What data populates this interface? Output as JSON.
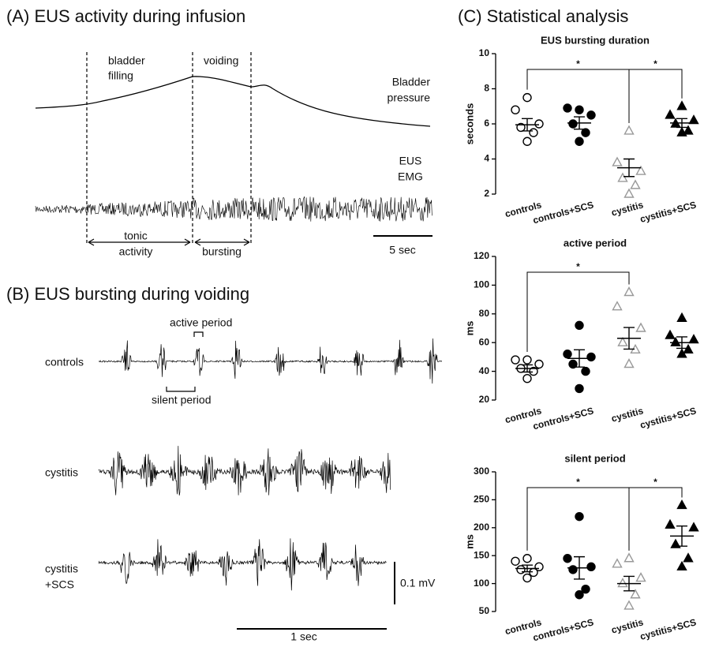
{
  "panel_a": {
    "title": "(A) EUS activity during infusion",
    "filling_1": "bladder",
    "filling_2": "filling",
    "voiding": "voiding",
    "pressure_1": "Bladder",
    "pressure_2": "pressure",
    "emg_1": "EUS",
    "emg_2": "EMG",
    "tonic_1": "tonic",
    "tonic_2": "activity",
    "bursting": "bursting",
    "scale": "5 sec"
  },
  "panel_b": {
    "title": "(B) EUS bursting during voiding",
    "controls": "controls",
    "cystitis": "cystitis",
    "scs_1": "cystitis",
    "scs_2": "+SCS",
    "active": "active period",
    "silent": "silent period",
    "volt_scale": "0.1 mV",
    "time_scale": "1 sec"
  },
  "panel_c": {
    "title": "(C) Statistical analysis"
  },
  "chart_data": [
    {
      "type": "dot",
      "title": "EUS bursting duration",
      "y_label": "seconds",
      "categories": [
        "controls",
        "controls+SCS",
        "cystitis",
        "cystitis+SCS"
      ],
      "markers": [
        "open-circle",
        "filled-circle",
        "open-triangle",
        "filled-triangle"
      ],
      "colors": [
        "#000000",
        "#000000",
        "#999999",
        "#000000"
      ],
      "values": [
        [
          7.5,
          6.8,
          6.0,
          5.8,
          5.5,
          5.0
        ],
        [
          6.8,
          6.9,
          6.5,
          6.0,
          5.5,
          5.0
        ],
        [
          5.6,
          3.8,
          3.3,
          2.9,
          2.5,
          2.0
        ],
        [
          7.0,
          6.5,
          6.2,
          6.0,
          5.6,
          5.5
        ]
      ],
      "means": [
        5.95,
        6.05,
        3.5,
        6.05
      ],
      "errors": [
        0.35,
        0.35,
        0.5,
        0.25
      ],
      "significance": [
        {
          "pair": [
            0,
            2
          ],
          "label": "*"
        },
        {
          "pair": [
            2,
            3
          ],
          "label": "*"
        }
      ],
      "ylim": [
        2,
        10
      ],
      "yticks": [
        2,
        4,
        6,
        8,
        10
      ]
    },
    {
      "type": "dot",
      "title": "active period",
      "y_label": "ms",
      "categories": [
        "controls",
        "controls+SCS",
        "cystitis",
        "cystitis+SCS"
      ],
      "markers": [
        "open-circle",
        "filled-circle",
        "open-triangle",
        "filled-triangle"
      ],
      "colors": [
        "#000000",
        "#000000",
        "#999999",
        "#000000"
      ],
      "values": [
        [
          48,
          48,
          45,
          42,
          40,
          35
        ],
        [
          72,
          52,
          50,
          45,
          40,
          28
        ],
        [
          95,
          85,
          70,
          60,
          55,
          45
        ],
        [
          77,
          65,
          62,
          60,
          55,
          52
        ]
      ],
      "means": [
        42,
        49,
        63,
        60
      ],
      "errors": [
        2.5,
        6,
        7.5,
        4
      ],
      "significance": [
        {
          "pair": [
            0,
            2
          ],
          "label": "*"
        }
      ],
      "ylim": [
        20,
        120
      ],
      "yticks": [
        20,
        40,
        60,
        80,
        100,
        120
      ]
    },
    {
      "type": "dot",
      "title": "silent period",
      "y_label": "ms",
      "categories": [
        "controls",
        "controls+SCS",
        "cystitis",
        "cystitis+SCS"
      ],
      "markers": [
        "open-circle",
        "filled-circle",
        "open-triangle",
        "filled-triangle"
      ],
      "colors": [
        "#000000",
        "#000000",
        "#999999",
        "#000000"
      ],
      "values": [
        [
          145,
          140,
          130,
          125,
          120,
          110
        ],
        [
          220,
          145,
          130,
          125,
          90,
          80
        ],
        [
          145,
          135,
          110,
          100,
          80,
          60
        ],
        [
          240,
          205,
          200,
          170,
          145,
          130
        ]
      ],
      "means": [
        127,
        128,
        100,
        185
      ],
      "errors": [
        6,
        20,
        13,
        18
      ],
      "significance": [
        {
          "pair": [
            0,
            2
          ],
          "label": "*"
        },
        {
          "pair": [
            2,
            3
          ],
          "label": "*"
        }
      ],
      "ylim": [
        50,
        300
      ],
      "yticks": [
        50,
        100,
        150,
        200,
        250,
        300
      ]
    }
  ]
}
